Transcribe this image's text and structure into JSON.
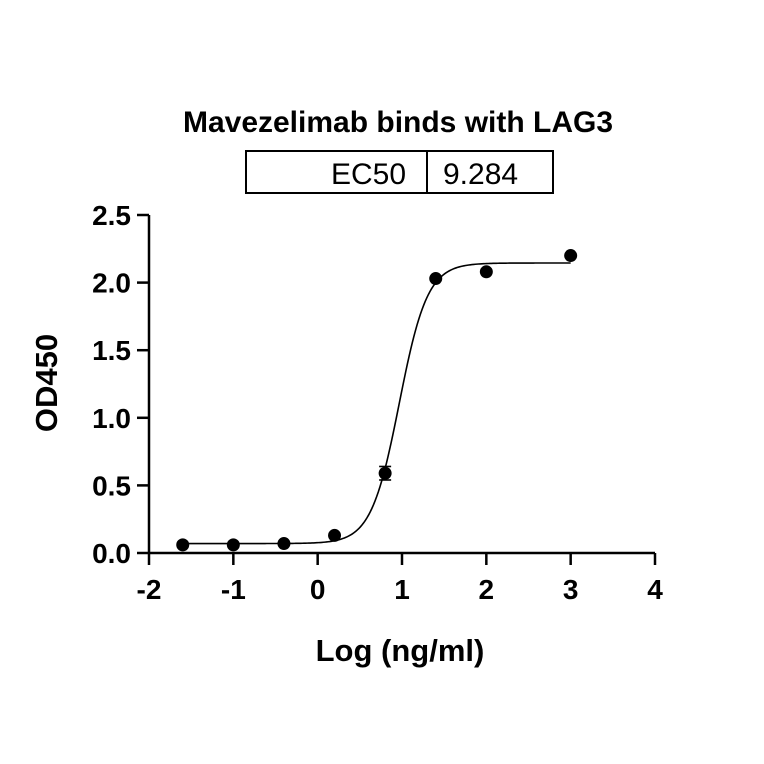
{
  "chart_data": {
    "type": "scatter",
    "title": "Mavezelimab binds with LAG3",
    "xlabel": "Log (ng/ml)",
    "ylabel": "OD450",
    "xlim": [
      -2,
      4
    ],
    "ylim": [
      0,
      2.5
    ],
    "xticks": [
      "-2",
      "-1",
      "0",
      "1",
      "2",
      "3",
      "4"
    ],
    "yticks": [
      "0.0",
      "0.5",
      "1.0",
      "1.5",
      "2.0",
      "2.5"
    ],
    "grid": false,
    "table": {
      "label": "EC50",
      "value": "9.284"
    },
    "series": [
      {
        "x": [
          -1.6,
          -1.0,
          -0.4,
          0.2,
          0.8,
          1.4,
          2.0,
          3.0
        ],
        "y": [
          0.06,
          0.06,
          0.07,
          0.13,
          0.59,
          2.03,
          2.08,
          2.2
        ],
        "error": [
          0.01,
          0.01,
          0.01,
          0.01,
          0.05,
          0.01,
          0.01,
          0.01
        ]
      }
    ],
    "fit": {
      "model": "4PL",
      "bottom": 0.07,
      "top": 2.145,
      "logEC50": 0.9677,
      "hill": 2.6,
      "x_range": [
        -1.6,
        3.0
      ]
    }
  }
}
